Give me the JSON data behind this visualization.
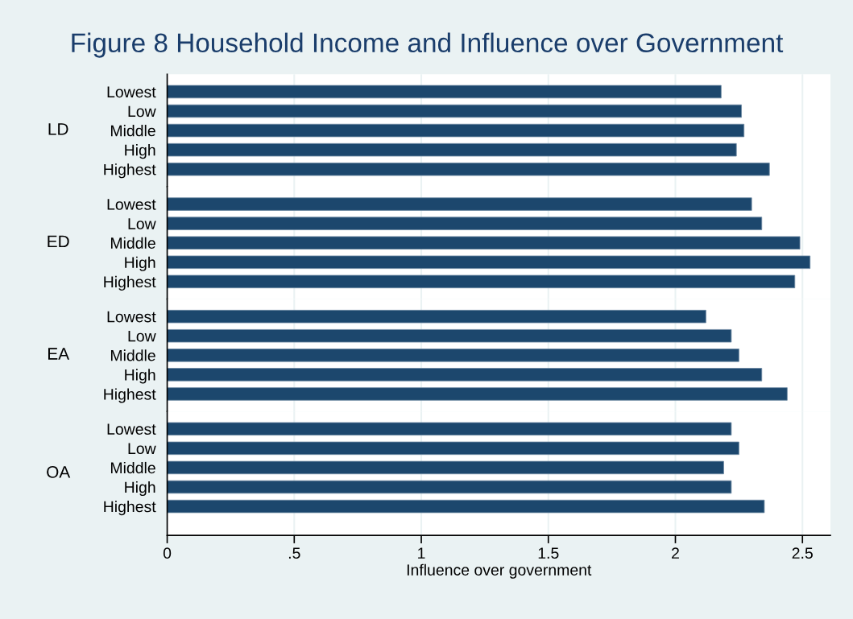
{
  "chart_data": [
    {
      "type": "bar",
      "orientation": "horizontal",
      "title": "Figure 8 Household Income and Influence over Government",
      "ylabel": "LD",
      "categories": [
        "Lowest",
        "Low",
        "Middle",
        "High",
        "Highest"
      ],
      "values": [
        2.18,
        2.26,
        2.27,
        2.24,
        2.37
      ],
      "color": "#1c476d",
      "xlim": [
        0,
        2.61
      ],
      "xticks": [
        0,
        0.5,
        1,
        1.5,
        2,
        2.5
      ],
      "grid": "x",
      "tick_labels": "y"
    },
    {
      "type": "bar",
      "orientation": "horizontal",
      "ylabel": "ED",
      "categories": [
        "Lowest",
        "Low",
        "Middle",
        "High",
        "Highest"
      ],
      "values": [
        2.3,
        2.34,
        2.49,
        2.53,
        2.47
      ],
      "color": "#1c476d",
      "xlim": [
        0,
        2.61
      ],
      "xticks": [
        0,
        0.5,
        1,
        1.5,
        2,
        2.5
      ],
      "grid": "x",
      "tick_labels": "y"
    },
    {
      "type": "bar",
      "orientation": "horizontal",
      "ylabel": "EA",
      "categories": [
        "Lowest",
        "Low",
        "Middle",
        "High",
        "Highest"
      ],
      "values": [
        2.12,
        2.22,
        2.25,
        2.34,
        2.44
      ],
      "color": "#1c476d",
      "xlim": [
        0,
        2.61
      ],
      "xticks": [
        0,
        0.5,
        1,
        1.5,
        2,
        2.5
      ],
      "grid": "x",
      "tick_labels": "y"
    },
    {
      "type": "bar",
      "orientation": "horizontal",
      "ylabel": "OA",
      "xlabel": "Influence over government",
      "categories": [
        "Lowest",
        "Low",
        "Middle",
        "High",
        "Highest"
      ],
      "values": [
        2.22,
        2.25,
        2.19,
        2.22,
        2.35
      ],
      "color": "#1c476d",
      "xlim": [
        0,
        2.61
      ],
      "xticks": [
        0,
        {
          "value": 0.5,
          "label": ".5"
        },
        1,
        {
          "value": 1.5,
          "label": "1.5"
        },
        2,
        {
          "value": 2.5,
          "label": "2.5"
        }
      ],
      "grid": "x"
    }
  ]
}
